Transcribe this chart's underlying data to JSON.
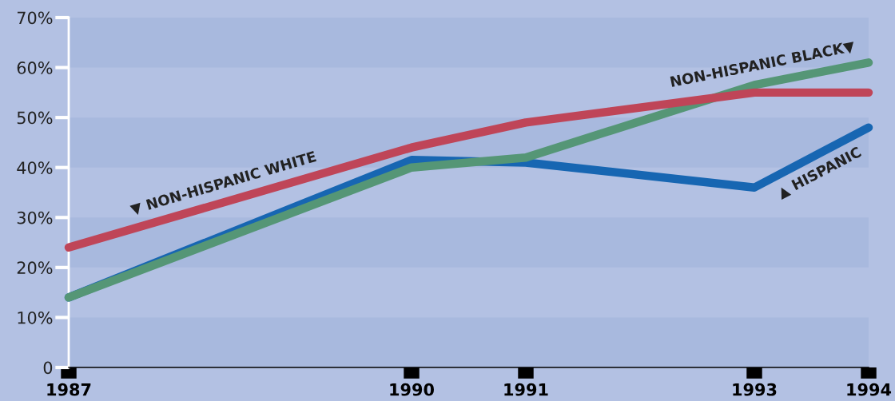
{
  "chart_data": {
    "type": "line",
    "x": [
      1987,
      1990,
      1991,
      1993,
      1994
    ],
    "xlim": [
      1987,
      1994
    ],
    "xticks": [
      1987,
      1990,
      1991,
      1993,
      1994
    ],
    "ylim": [
      0,
      70
    ],
    "yticks": [
      0,
      {
        "value": 10,
        "label": "10%"
      },
      {
        "value": 20,
        "label": "20%"
      },
      {
        "value": 30,
        "label": "30%"
      },
      {
        "value": 40,
        "label": "40%"
      },
      {
        "value": 50,
        "label": "50%"
      },
      {
        "value": 60,
        "label": "60%"
      },
      {
        "value": 70,
        "label": "70%"
      }
    ],
    "series": [
      {
        "color": "#1766b2",
        "values": [
          14,
          41.5,
          41,
          36,
          48
        ]
      },
      {
        "color": "#559676",
        "values": [
          14,
          40,
          42,
          56.5,
          61
        ]
      },
      {
        "color": "#bf4558",
        "values": [
          24,
          44,
          49,
          55,
          55
        ]
      }
    ],
    "annotations": [
      {
        "text": "▼ NON-HISPANIC WHITE",
        "x": 1988.4,
        "y": 33.3
      },
      {
        "text": "NON-HISPANIC BLACK▼",
        "x": 1993.1,
        "y": 57.0
      },
      {
        "text": "▲ HISPANIC",
        "x": 1993.5,
        "y": 42
      }
    ],
    "bands": [
      {
        "axis": "y",
        "from": 0,
        "to": 10,
        "color": "#a8b9de"
      },
      {
        "axis": "y",
        "from": 20,
        "to": 30,
        "color": "#a8b9de"
      },
      {
        "axis": "y",
        "from": 40,
        "to": 50,
        "color": "#a8b9de"
      },
      {
        "axis": "y",
        "from": 60,
        "to": 70,
        "color": "#a8b9de"
      }
    ],
    "marker": "none",
    "line_style": "solid"
  }
}
